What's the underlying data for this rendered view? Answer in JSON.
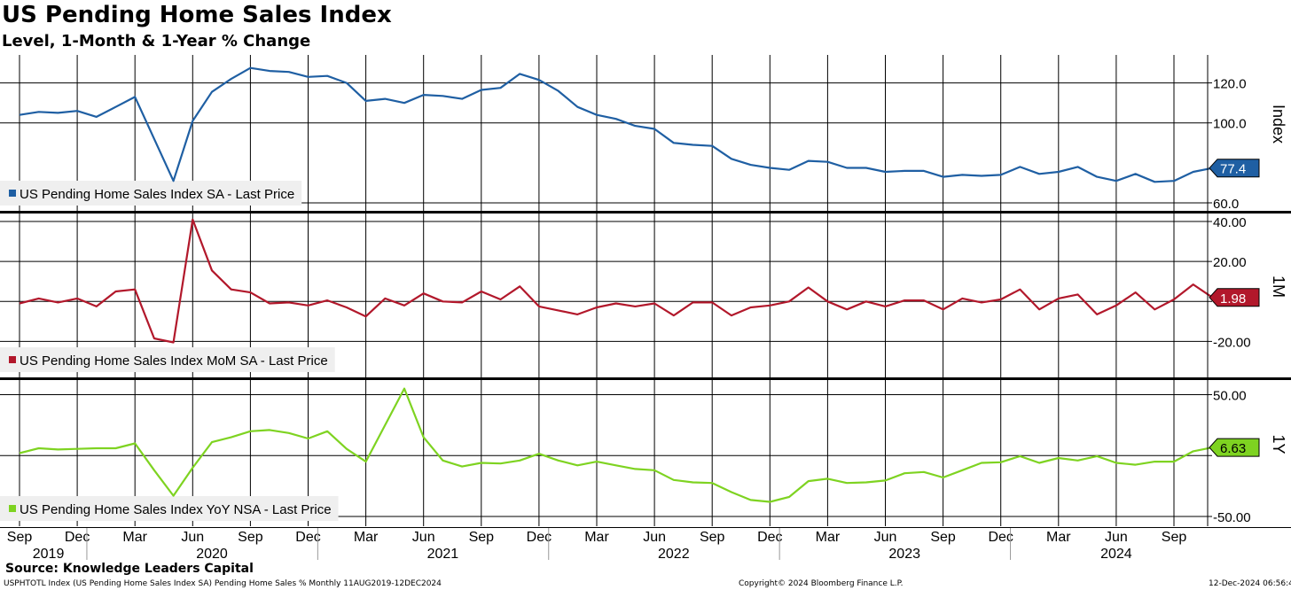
{
  "title": "US Pending Home Sales Index",
  "subtitle": "Level, 1-Month & 1-Year % Change",
  "source": "Source: Knowledge Leaders Capital",
  "footer": {
    "left": "USPHTOTL Index (US Pending Home Sales Index SA) Pending Home Sales % Monthly 11AUG2019-12DEC2024",
    "mid": "Copyright© 2024 Bloomberg Finance L.P.",
    "right": "12-Dec-2024 06:56:47"
  },
  "chart_data": [
    {
      "type": "line",
      "panel": "index",
      "axis_title": "Index",
      "legend": "US Pending Home Sales Index SA - Last Price",
      "color": "#1f5fa3",
      "ylim": [
        56,
        134
      ],
      "yticks": [
        {
          "v": 120,
          "label": "120.0"
        },
        {
          "v": 100,
          "label": "100.0"
        },
        {
          "v": 60,
          "label": "60.0"
        }
      ],
      "last_label": "77.4",
      "last_value": 77.4,
      "values": [
        104,
        105.5,
        105,
        106,
        103,
        108,
        113,
        92,
        71,
        101,
        115.5,
        122,
        127.5,
        126,
        125.5,
        123,
        123.5,
        120,
        111,
        112,
        110,
        114,
        113.5,
        112,
        116.5,
        117.5,
        124.5,
        121.5,
        116,
        108,
        104,
        102,
        98.5,
        97,
        90,
        89,
        88.5,
        82,
        79,
        77.5,
        76.5,
        81,
        80.5,
        77.5,
        77.5,
        75.5,
        76,
        76,
        73,
        74,
        73.5,
        74,
        78,
        74.5,
        75.5,
        78,
        73,
        71,
        74.5,
        70.5,
        71,
        75.5,
        77.4
      ]
    },
    {
      "type": "line",
      "panel": "mom",
      "axis_title": "1M",
      "legend": "US Pending Home Sales Index MoM SA - Last Price",
      "color": "#b2182b",
      "ylim": [
        -38,
        44
      ],
      "yticks": [
        {
          "v": 40,
          "label": "40.00"
        },
        {
          "v": 20,
          "label": "20.00"
        },
        {
          "v": 0,
          "label": ""
        },
        {
          "v": -20,
          "label": "-20.00"
        }
      ],
      "last_label": "1.98",
      "last_value": 1.98,
      "values": [
        -1,
        1.5,
        -0.5,
        1.5,
        -2.5,
        5,
        6,
        -18.5,
        -20.5,
        41,
        15.5,
        6,
        4.5,
        -1,
        -0.5,
        -2,
        0.5,
        -3,
        -7.5,
        1.5,
        -2,
        4,
        0,
        -0.5,
        5,
        1,
        7.5,
        -2.5,
        -4.5,
        -6.5,
        -3,
        -1,
        -2.5,
        -1,
        -7,
        -0.5,
        -0.5,
        -7,
        -3,
        -2,
        0,
        7,
        0,
        -4,
        0,
        -2.5,
        0.5,
        0.5,
        -4,
        1.5,
        -0.5,
        1,
        6,
        -4,
        1.5,
        3.5,
        -6.5,
        -2,
        4.5,
        -4,
        1,
        8.5,
        1.98
      ]
    },
    {
      "type": "line",
      "panel": "yoy",
      "axis_title": "1Y",
      "legend": "US Pending Home Sales Index YoY NSA - Last Price",
      "color": "#7ed321",
      "ylim": [
        -58,
        62
      ],
      "yticks": [
        {
          "v": 50,
          "label": "50.00"
        },
        {
          "v": 0,
          "label": ""
        },
        {
          "v": -50,
          "label": "-50.00"
        }
      ],
      "last_label": "6.63",
      "last_value": 6.63,
      "values": [
        2,
        6,
        5,
        5.5,
        6,
        6,
        10,
        -12,
        -33,
        -10,
        11,
        15,
        20,
        21,
        18.5,
        14,
        20,
        5.5,
        -5,
        25,
        55,
        15,
        -4,
        -9,
        -6,
        -6.5,
        -4,
        1.5,
        -4,
        -8,
        -5,
        -8,
        -11,
        -12,
        -20,
        -22,
        -22.5,
        -30,
        -36.5,
        -38,
        -34,
        -21,
        -19,
        -22.5,
        -22,
        -20.5,
        -14.5,
        -13.5,
        -18,
        -12,
        -6,
        -5.5,
        -0.5,
        -6,
        -2,
        -4,
        -0.5,
        -6,
        -7.5,
        -5,
        -5,
        3.5,
        6.63
      ]
    }
  ],
  "x_axis": {
    "month_labels": [
      "Sep",
      "Dec",
      "Mar",
      "Jun",
      "Sep",
      "Dec",
      "Mar",
      "Jun",
      "Sep",
      "Dec",
      "Mar",
      "Jun",
      "Sep",
      "Dec",
      "Mar",
      "Jun",
      "Sep",
      "Dec",
      "Mar",
      "Jun",
      "Sep"
    ],
    "year_labels": [
      "2019",
      "2020",
      "2021",
      "2022",
      "2023",
      "2024"
    ]
  }
}
